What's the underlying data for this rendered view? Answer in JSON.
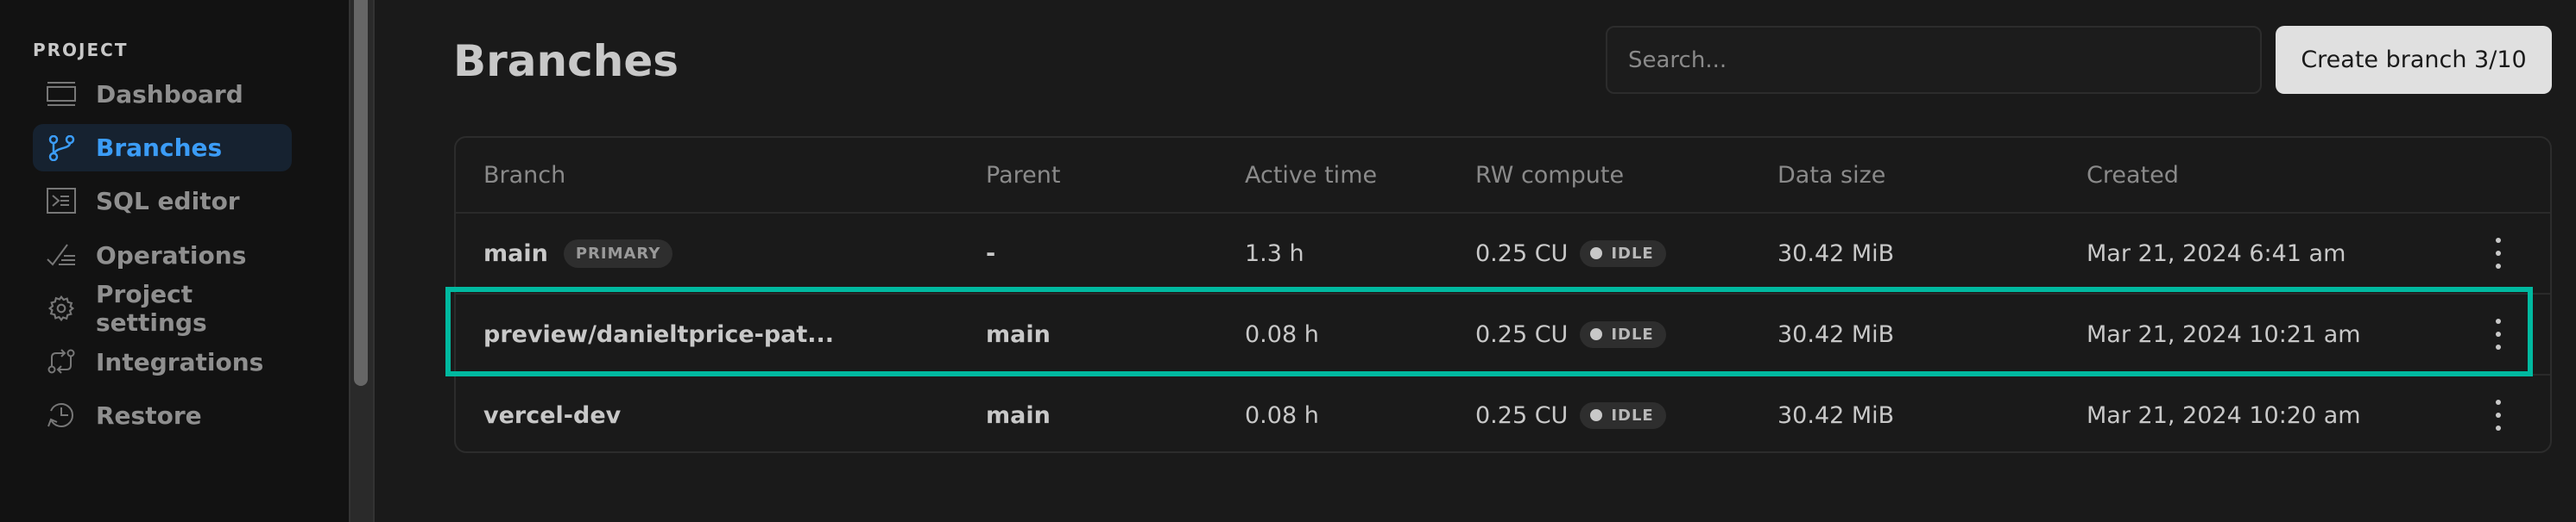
{
  "sidebar": {
    "section": "PROJECT",
    "items": [
      {
        "label": "Dashboard",
        "icon": "dashboard-icon"
      },
      {
        "label": "Branches",
        "icon": "branch-icon",
        "active": true
      },
      {
        "label": "SQL editor",
        "icon": "terminal-icon"
      },
      {
        "label": "Operations",
        "icon": "operations-icon"
      },
      {
        "label": "Project settings",
        "icon": "gear-icon"
      },
      {
        "label": "Integrations",
        "icon": "integrations-icon"
      },
      {
        "label": "Restore",
        "icon": "restore-icon"
      }
    ]
  },
  "header": {
    "title": "Branches",
    "search_placeholder": "Search...",
    "create_label": "Create branch 3/10"
  },
  "table": {
    "columns": [
      "Branch",
      "Parent",
      "Active time",
      "RW compute",
      "Data size",
      "Created"
    ],
    "rows": [
      {
        "branch": "main",
        "badge": "PRIMARY",
        "parent": "-",
        "active_time": "1.3 h",
        "compute": "0.25 CU",
        "status": "IDLE",
        "data_size": "30.42 MiB",
        "created": "Mar 21, 2024 6:41 am"
      },
      {
        "branch": "preview/danieltprice-pat...",
        "parent": "main",
        "active_time": "0.08 h",
        "compute": "0.25 CU",
        "status": "IDLE",
        "data_size": "30.42 MiB",
        "created": "Mar 21, 2024 10:21 am",
        "highlighted": true
      },
      {
        "branch": "vercel-dev",
        "parent": "main",
        "active_time": "0.08 h",
        "compute": "0.25 CU",
        "status": "IDLE",
        "data_size": "30.42 MiB",
        "created": "Mar 21, 2024 10:20 am"
      }
    ]
  },
  "colors": {
    "accent": "#3b9cf6",
    "highlight": "#00b9a0",
    "background": "#1a1a1a",
    "sidebar": "#121212"
  }
}
